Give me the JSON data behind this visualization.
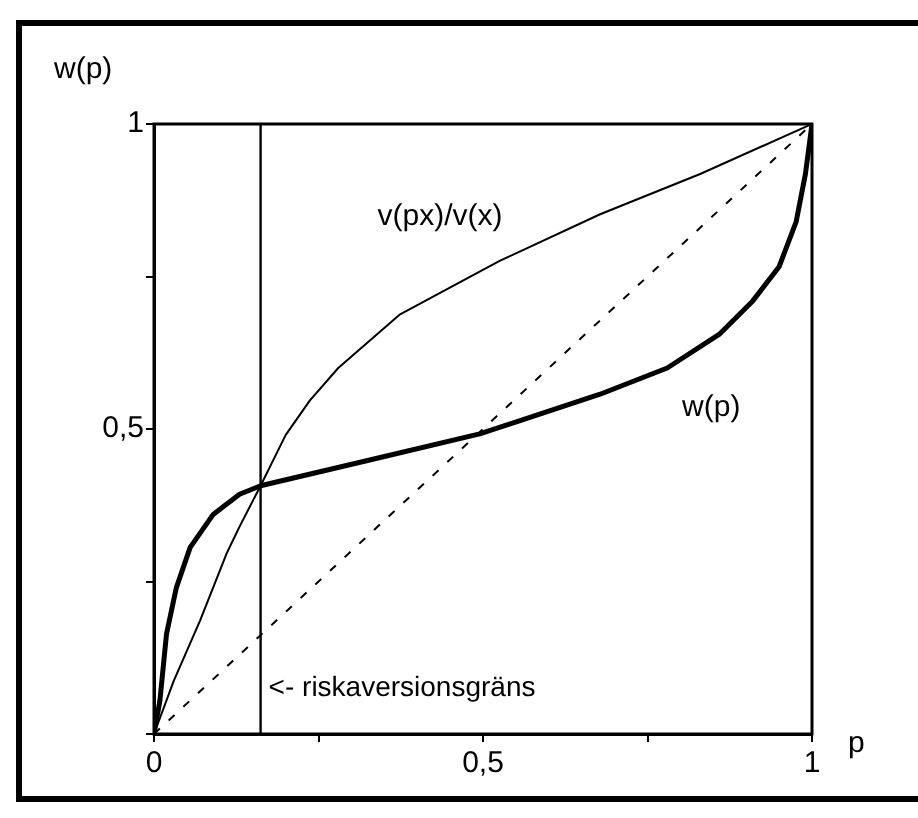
{
  "chart_data": {
    "type": "line",
    "xlabel": "p",
    "ylabel": "w(p)",
    "xlim": [
      0,
      1
    ],
    "ylim": [
      0,
      1
    ],
    "xticks": [
      0,
      {
        "value": 0.25,
        "label": null
      },
      {
        "value": 0.5,
        "label": "0,5"
      },
      {
        "value": 0.75,
        "label": null
      },
      1
    ],
    "yticks": [
      {
        "value": 0,
        "label": null
      },
      {
        "value": 0.25,
        "label": null
      },
      {
        "value": 0.5,
        "label": "0,5"
      },
      {
        "value": 0.75,
        "label": null
      },
      1
    ],
    "grid": false,
    "legend": false,
    "marker": "none",
    "series": [
      {
        "name": "v(px)/v(x)",
        "color": "#000000",
        "line_style": "solid",
        "x": [
          0,
          0.03,
          0.07,
          0.11,
          0.13,
          0.162,
          0.2,
          0.237,
          0.28,
          0.374,
          0.526,
          0.678,
          0.83,
          1
        ],
        "values": [
          0,
          0.087,
          0.186,
          0.295,
          0.34,
          0.407,
          0.49,
          0.547,
          0.6,
          0.688,
          0.776,
          0.852,
          0.918,
          1
        ]
      },
      {
        "name": "w(p)",
        "color": "#000000",
        "line_style": "solid",
        "x": [
          0,
          0.009,
          0.019,
          0.034,
          0.055,
          0.09,
          0.13,
          0.162,
          0.323,
          0.495,
          0.678,
          0.78,
          0.86,
          0.91,
          0.95,
          0.976,
          0.99,
          1
        ],
        "values": [
          0,
          0.055,
          0.164,
          0.24,
          0.306,
          0.36,
          0.393,
          0.407,
          0.448,
          0.492,
          0.557,
          0.6,
          0.656,
          0.71,
          0.766,
          0.84,
          0.918,
          1
        ]
      },
      {
        "color": "#000000",
        "line_style": "dashed",
        "x": [
          0,
          1
        ],
        "values": [
          0,
          1
        ]
      }
    ],
    "ref_lines": [
      {
        "axis": "x",
        "value": 0.162,
        "label": "<- riskaversionsgräns",
        "color": "#000000"
      }
    ]
  }
}
